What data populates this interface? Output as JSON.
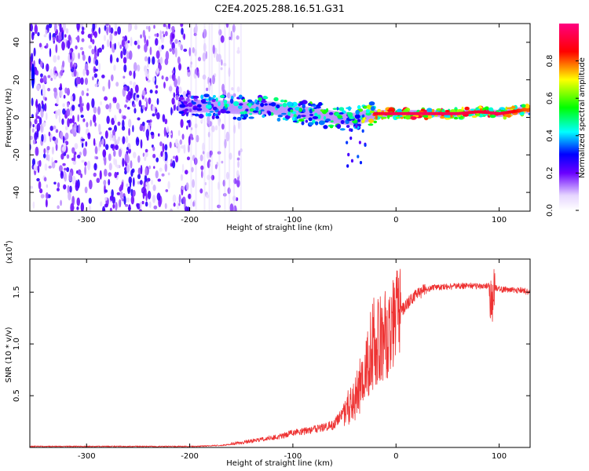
{
  "figure": {
    "title": "C2E4.2025.288.16.51.G31"
  },
  "chart_data": [
    {
      "id": "spectrogram",
      "type": "heatmap",
      "xlabel": "Height of straight line (km)",
      "ylabel": "Frequency (Hz)",
      "xlim": [
        -355,
        130
      ],
      "ylim": [
        -50,
        50
      ],
      "xticks": [
        -300,
        -200,
        -100,
        0,
        100
      ],
      "yticks": [
        -40,
        -20,
        0,
        20,
        40
      ],
      "colorbar": {
        "label": "Normalized spectral amplitude",
        "range": [
          0,
          1
        ],
        "ticks": [
          0.0,
          0.2,
          0.4,
          0.6,
          0.8
        ],
        "tick_labels": [
          "0.0",
          "0.2",
          "0.4",
          "0.6",
          "0.8"
        ],
        "colormap": [
          "#ffffff",
          "#6a00ff",
          "#0000ff",
          "#00ffff",
          "#00ff00",
          "#ffff00",
          "#ff0000",
          "#ff0080"
        ]
      },
      "ridge": {
        "description_points_x": [
          -210,
          -180,
          -150,
          -120,
          -100,
          -80,
          -60,
          -40,
          -20,
          0,
          20,
          40,
          60,
          80,
          100,
          125
        ],
        "description_points_y": [
          6,
          6,
          5,
          5,
          3,
          2,
          0,
          -1,
          2,
          2,
          2,
          2,
          2,
          3,
          2,
          4
        ],
        "peak_amplitude": [
          0.3,
          0.45,
          0.55,
          0.5,
          0.55,
          0.6,
          0.6,
          0.55,
          0.9,
          0.95,
          0.95,
          0.95,
          0.95,
          0.9,
          0.95,
          0.8
        ]
      }
    },
    {
      "id": "snr",
      "type": "line",
      "xlabel": "Height of straight line (km)",
      "ylabel": "SNR (10 * v/v)",
      "y_multiplier_label": "(x10",
      "y_multiplier_exp": "4",
      "xlim": [
        -355,
        130
      ],
      "ylim": [
        0,
        1.82
      ],
      "xticks": [
        -300,
        -200,
        -100,
        0,
        100
      ],
      "yticks": [
        0.5,
        1.0,
        1.5
      ],
      "ytick_labels": [
        "0.5",
        "1.0",
        "1.5"
      ],
      "line_color": "#ee3333",
      "envelope": {
        "x": [
          -355,
          -200,
          -170,
          -150,
          -130,
          -110,
          -100,
          -90,
          -80,
          -70,
          -60,
          -50,
          -40,
          -35,
          -30,
          -25,
          -20,
          -15,
          -10,
          -5,
          0,
          10,
          20,
          30,
          40,
          50,
          60,
          70,
          80,
          90,
          93,
          95,
          100,
          110,
          120,
          130
        ],
        "y": [
          0.01,
          0.01,
          0.02,
          0.04,
          0.07,
          0.1,
          0.13,
          0.14,
          0.16,
          0.18,
          0.2,
          0.35,
          0.45,
          0.6,
          0.8,
          0.95,
          1.05,
          1.05,
          1.1,
          1.15,
          1.25,
          1.38,
          1.48,
          1.53,
          1.55,
          1.55,
          1.56,
          1.56,
          1.56,
          1.56,
          1.3,
          1.55,
          1.53,
          1.52,
          1.52,
          1.5
        ]
      }
    }
  ]
}
